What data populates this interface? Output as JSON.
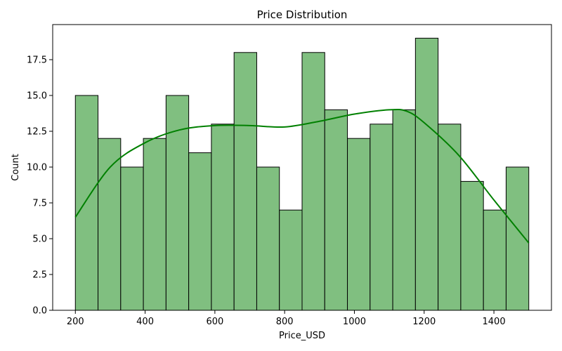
{
  "chart_data": {
    "type": "bar",
    "title": "Price Distribution",
    "xlabel": "Price_USD",
    "ylabel": "Count",
    "xlim": [
      135,
      1565
    ],
    "ylim": [
      0,
      19.95
    ],
    "bin_edges": [
      200,
      265,
      330,
      395,
      460,
      525,
      590,
      655,
      720,
      785,
      850,
      915,
      980,
      1045,
      1110,
      1175,
      1240,
      1305,
      1370,
      1435,
      1500
    ],
    "values": [
      15,
      12,
      10,
      12,
      15,
      11,
      13,
      18,
      10,
      7,
      18,
      14,
      12,
      13,
      14,
      19,
      13,
      9,
      7,
      10
    ],
    "x_ticks": [
      200,
      400,
      600,
      800,
      1000,
      1200,
      1400
    ],
    "x_tick_labels": [
      "200",
      "400",
      "600",
      "800",
      "1000",
      "1200",
      "1400"
    ],
    "y_ticks": [
      0,
      2.5,
      5,
      7.5,
      10,
      12.5,
      15,
      17.5
    ],
    "y_tick_labels": [
      "0.0",
      "2.5",
      "5.0",
      "7.5",
      "10.0",
      "12.5",
      "15.0",
      "17.5"
    ],
    "kde": {
      "x": [
        200,
        300,
        400,
        500,
        600,
        700,
        800,
        900,
        1000,
        1100,
        1150,
        1200,
        1300,
        1400,
        1500
      ],
      "y": [
        6.5,
        10.0,
        11.7,
        12.6,
        12.9,
        12.9,
        12.8,
        13.2,
        13.7,
        14.0,
        13.9,
        13.1,
        10.8,
        7.7,
        4.7
      ]
    },
    "grid": false,
    "colors": {
      "bar_fill": "#80bf80",
      "bar_edge": "#000000",
      "kde_line": "#008000"
    }
  }
}
